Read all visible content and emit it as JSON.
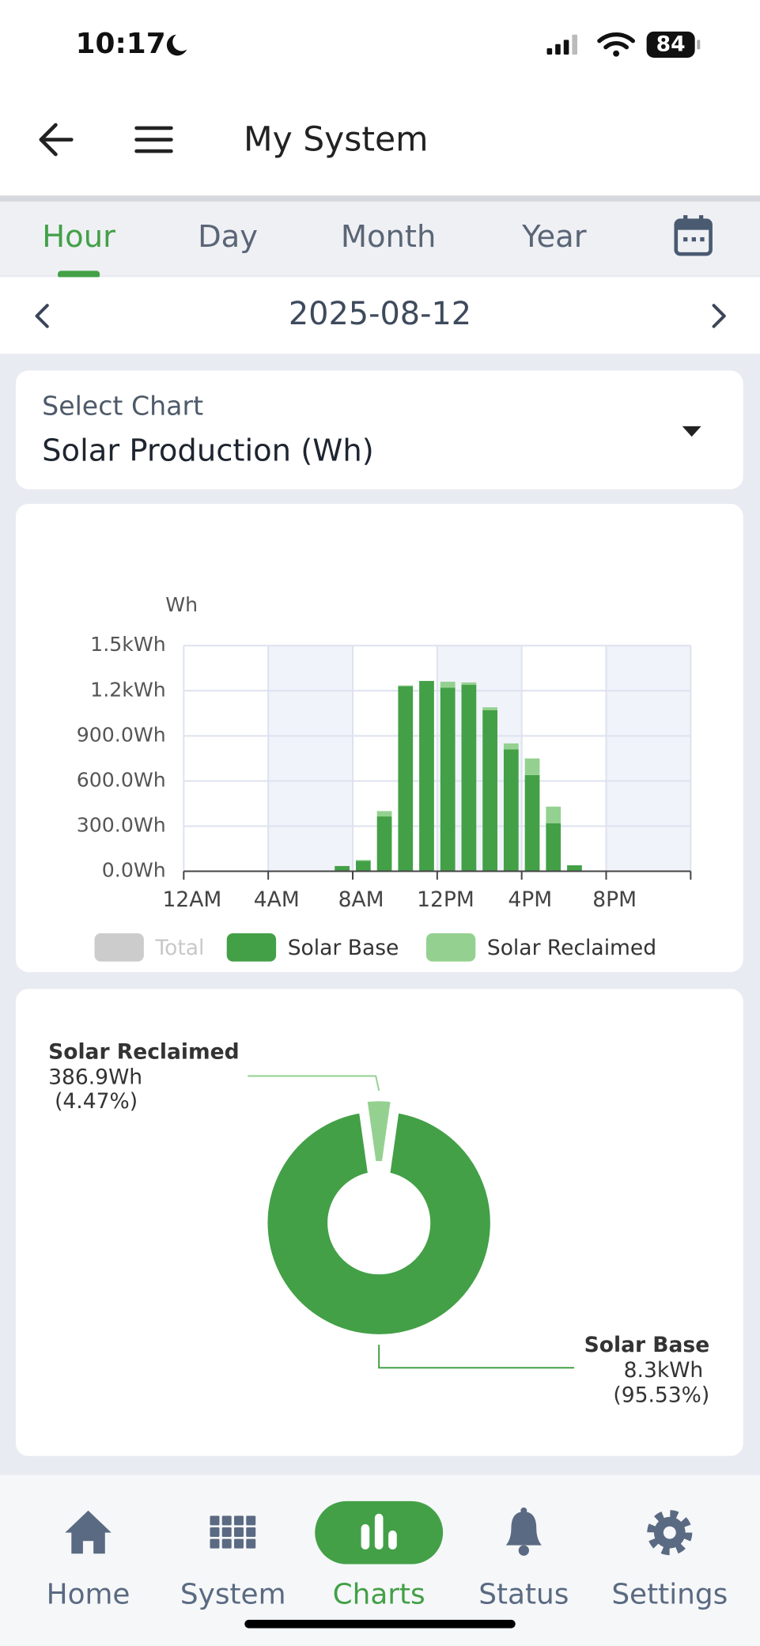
{
  "status_bar": {
    "time": "10:17",
    "battery": "84"
  },
  "header": {
    "title": "My System"
  },
  "tabs": [
    "Hour",
    "Day",
    "Month",
    "Year"
  ],
  "active_tab": 0,
  "date": "2025-08-12",
  "select_chart": {
    "label": "Select Chart",
    "value": "Solar Production (Wh)"
  },
  "chart_data": [
    {
      "type": "bar",
      "stacked": true,
      "y_label": "Wh",
      "categories": [
        "12AM",
        null,
        null,
        null,
        "4AM",
        null,
        null,
        null,
        "8AM",
        null,
        null,
        null,
        "12PM",
        null,
        null,
        null,
        "4PM",
        null,
        null,
        null,
        "8PM",
        null,
        null,
        null
      ],
      "series": [
        {
          "name": "Total",
          "color": "#cccccc",
          "hidden": true,
          "values": [
            null,
            null,
            null,
            null,
            null,
            null,
            null,
            null,
            null,
            null,
            null,
            null,
            null,
            null,
            null,
            null,
            null,
            null,
            null,
            null,
            null,
            null,
            null,
            null
          ]
        },
        {
          "name": "Solar Base",
          "color": "#43a047",
          "values": [
            0,
            0,
            0,
            0,
            0,
            0,
            5,
            35,
            70,
            365,
            1230,
            1265,
            1220,
            1240,
            1070,
            810,
            640,
            320,
            40,
            5,
            0,
            0,
            0,
            0
          ]
        },
        {
          "name": "Solar Reclaimed",
          "color": "#94d190",
          "values": [
            0,
            0,
            0,
            0,
            0,
            0,
            0,
            0,
            5,
            35,
            5,
            0,
            40,
            15,
            20,
            40,
            110,
            110,
            0,
            0,
            0,
            0,
            0,
            0
          ]
        }
      ],
      "ylim": [
        0,
        1500
      ],
      "yticks": [
        {
          "value": 0,
          "label": "0.0Wh"
        },
        {
          "value": 300,
          "label": "300.0Wh"
        },
        {
          "value": 600,
          "label": "600.0Wh"
        },
        {
          "value": 900,
          "label": "900.0Wh"
        },
        {
          "value": 1200,
          "label": "1.2kWh"
        },
        {
          "value": 1500,
          "label": "1.5kWh"
        }
      ],
      "grid": true
    },
    {
      "type": "pie",
      "donut": true,
      "categories": [
        "Solar Reclaimed",
        "Solar Base"
      ],
      "values": [
        386.9,
        8300
      ],
      "value_labels": [
        "386.9Wh",
        "8.3kWh"
      ],
      "percents": [
        4.47,
        95.53
      ],
      "percent_labels": [
        "(4.47%)",
        "(95.53%)"
      ],
      "colors": [
        "#94d190",
        "#43a047"
      ]
    }
  ],
  "nav": {
    "items": [
      "Home",
      "System",
      "Charts",
      "Status",
      "Settings"
    ],
    "active": 2
  }
}
